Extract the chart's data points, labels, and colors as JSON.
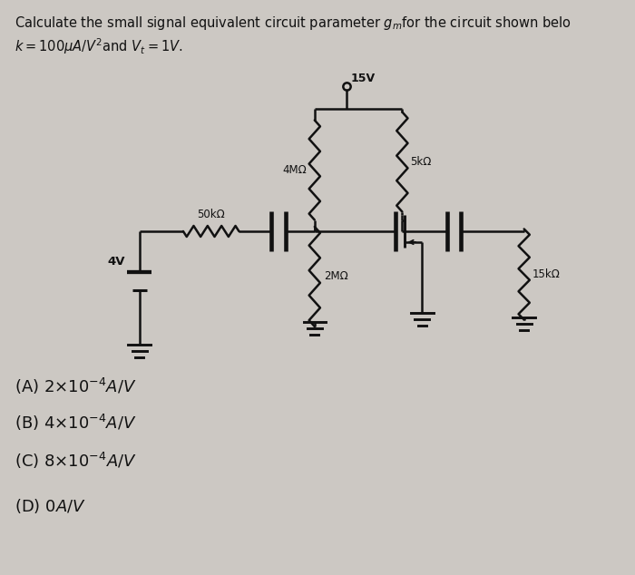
{
  "background_color": "#ccc8c3",
  "text_color": "#111111",
  "circuit_color": "#111111",
  "title_line1": "Calculate the small signal equivalent circuit parameter $g_m$for the circuit shown belo",
  "title_line2": "$k = 100\\mu A/V^2$and $V_t = 1V$.",
  "answer_options": [
    "(A) $2{\\times}10^{-4}A/V$",
    "(B) $4{\\times}10^{-4}A/V$",
    "(C) $8{\\times}10^{-4}A/V$",
    "(D) $0A/V$"
  ],
  "font_size_title": 10.5,
  "font_size_options": 13,
  "lw": 1.8
}
